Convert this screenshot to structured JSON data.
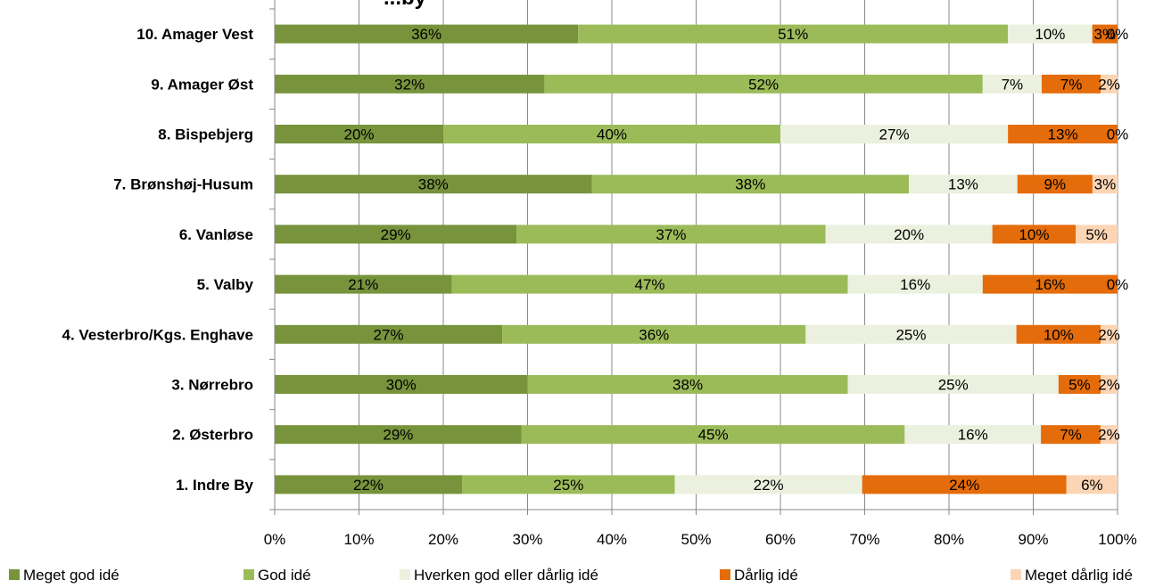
{
  "chart_data": {
    "type": "bar",
    "orientation": "horizontal",
    "stacked": "percent",
    "title": "...by",
    "categories": [
      "10.  Amager Vest",
      "9.  Amager Øst",
      "8.  Bispebjerg",
      "7.  Brønshøj-Husum",
      "6.  Vanløse",
      "5.  Valby",
      "4.  Vesterbro/Kgs. Enghave",
      "3.  Nørrebro",
      "2.  Østerbro",
      "1.  Indre By"
    ],
    "series": [
      {
        "name": "Meget god idé",
        "color": "#77933c",
        "values": [
          36,
          32,
          20,
          38,
          29,
          21,
          27,
          30,
          29,
          22
        ],
        "labels": [
          "36%",
          "32%",
          "20%",
          "38%",
          "29%",
          "21%",
          "27%",
          "30%",
          "29%",
          "22%"
        ]
      },
      {
        "name": "God idé",
        "color": "#9bbb59",
        "values": [
          51,
          52,
          40,
          38,
          37,
          47,
          36,
          38,
          45,
          25
        ],
        "labels": [
          "51%",
          "52%",
          "40%",
          "38%",
          "37%",
          "47%",
          "36%",
          "38%",
          "45%",
          "25%"
        ]
      },
      {
        "name": "Hverken god eller dårlig idé",
        "color": "#ebf1de",
        "values": [
          10,
          7,
          27,
          13,
          20,
          16,
          25,
          25,
          16,
          22
        ],
        "labels": [
          "10%",
          "7%",
          "27%",
          "13%",
          "20%",
          "16%",
          "25%",
          "25%",
          "16%",
          "22%"
        ]
      },
      {
        "name": "Dårlig idé",
        "color": "#e46c0a",
        "values": [
          3,
          7,
          13,
          9,
          10,
          16,
          10,
          5,
          7,
          24
        ],
        "labels": [
          "3%",
          "7%",
          "13%",
          "9%",
          "10%",
          "16%",
          "10%",
          "5%",
          "7%",
          "24%"
        ]
      },
      {
        "name": "Meget dårlig idé",
        "color": "#fcd5b5",
        "values": [
          0,
          2,
          0,
          3,
          5,
          0,
          2,
          2,
          2,
          6
        ],
        "labels": [
          "0%",
          "2%",
          "0%",
          "3%",
          "5%",
          "0%",
          "2%",
          "2%",
          "2%",
          "6%"
        ]
      }
    ],
    "xaxis": {
      "ticks": [
        0,
        10,
        20,
        30,
        40,
        50,
        60,
        70,
        80,
        90,
        100
      ],
      "tick_labels": [
        "0%",
        "10%",
        "20%",
        "30%",
        "40%",
        "50%",
        "60%",
        "70%",
        "80%",
        "90%",
        "100%"
      ],
      "range": [
        0,
        100
      ]
    },
    "grid": "vertical",
    "legend_position": "bottom"
  }
}
